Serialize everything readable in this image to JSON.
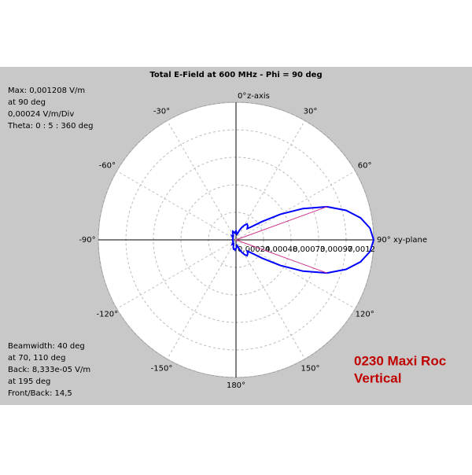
{
  "chart_data": {
    "type": "polar",
    "title": "Total E-Field at 600 MHz - Phi = 90 deg",
    "z_axis_label": "z-axis",
    "xy_axis_label": "xy-plane",
    "rlim": [
      0,
      0.001208
    ],
    "rticks": [
      {
        "value": 0.000242,
        "label": "0,00024"
      },
      {
        "value": 0.000483,
        "label": "0,00048"
      },
      {
        "value": 0.000725,
        "label": "0,00073"
      },
      {
        "value": 0.000966,
        "label": "0,00097"
      },
      {
        "value": 0.001208,
        "label": "0,0012"
      }
    ],
    "theta_ticks": [
      {
        "value": 0,
        "label": "0°"
      },
      {
        "value": 30,
        "label": "30°"
      },
      {
        "value": 60,
        "label": "60°"
      },
      {
        "value": 90,
        "label": "90°"
      },
      {
        "value": 120,
        "label": "120°"
      },
      {
        "value": 150,
        "label": "150°"
      },
      {
        "value": 180,
        "label": "180°"
      },
      {
        "value": -150,
        "label": "-150°"
      },
      {
        "value": -120,
        "label": "-120°"
      },
      {
        "value": -90,
        "label": "-90°"
      },
      {
        "value": -60,
        "label": "-60°"
      },
      {
        "value": -30,
        "label": "-30°"
      }
    ],
    "x": [
      0,
      5,
      10,
      15,
      20,
      25,
      30,
      35,
      40,
      45,
      50,
      55,
      60,
      65,
      70,
      75,
      80,
      85,
      90,
      95,
      100,
      105,
      110,
      115,
      120,
      125,
      130,
      135,
      140,
      145,
      150,
      155,
      160,
      165,
      170,
      175,
      180,
      185,
      190,
      195,
      200,
      205,
      210,
      215,
      220,
      225,
      230,
      235,
      240,
      245,
      250,
      255,
      260,
      265,
      270,
      275,
      280,
      285,
      290,
      295,
      300,
      305,
      310,
      315,
      320,
      325,
      330,
      335,
      340,
      345,
      350,
      355
    ],
    "series": [
      {
        "color": "#0000ff",
        "values": [
          8e-05,
          6e-05,
          5e-05,
          6e-05,
          9e-05,
          0.00012,
          0.00015,
          0.00017,
          0.00016,
          0.00014,
          0.00018,
          0.00028,
          0.00045,
          0.00065,
          0.00085,
          0.001,
          0.00111,
          0.00118,
          0.001208,
          0.00118,
          0.00111,
          0.001,
          0.00085,
          0.00065,
          0.00045,
          0.00028,
          0.00018,
          0.00014,
          0.00016,
          0.00017,
          0.00015,
          0.00012,
          9e-05,
          6e-05,
          5e-05,
          6e-05,
          8e-05,
          9e-05,
          8e-05,
          8.333e-05,
          7e-05,
          5e-05,
          4e-05,
          4e-05,
          5e-05,
          4e-05,
          3e-05,
          3e-05,
          3e-05,
          3e-05,
          3e-05,
          3e-05,
          3e-05,
          3e-05,
          3e-05,
          3e-05,
          3e-05,
          3e-05,
          3e-05,
          3e-05,
          3e-05,
          3e-05,
          4e-05,
          5e-05,
          4e-05,
          4e-05,
          5e-05,
          7e-05,
          8e-05,
          7e-05,
          6e-05,
          7e-05
        ]
      }
    ],
    "beam_markers": {
      "color": "#cc3388",
      "theta": [
        70,
        110
      ],
      "r": [
        0.000854,
        0.000854
      ]
    },
    "info_top": [
      "Max: 0,001208 V/m",
      "at 90 deg",
      "0,00024 V/m/Div",
      "Theta: 0 : 5 : 360 deg"
    ],
    "info_bottom": [
      "Beamwidth: 40 deg",
      "at 70, 110 deg",
      "Back: 8,333e-05 V/m",
      "at 195 deg",
      "Front/Back: 14,5"
    ],
    "caption": [
      "0230 Maxi Roc",
      "Vertical"
    ]
  }
}
